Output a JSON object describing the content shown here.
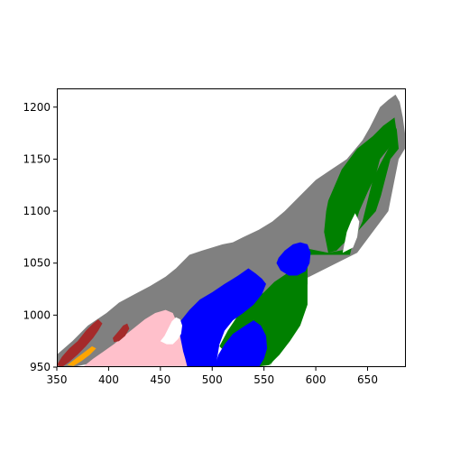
{
  "chart_data": {
    "type": "heatmap",
    "title": "",
    "xlabel": "",
    "ylabel": "",
    "xlim": [
      350,
      687
    ],
    "ylim": [
      950,
      1218
    ],
    "x_ticks": [
      350,
      400,
      450,
      500,
      550,
      600,
      650
    ],
    "y_ticks": [
      950,
      1000,
      1050,
      1100,
      1150,
      1200
    ],
    "grid": false,
    "legend": "none",
    "colors": {
      "gray": "#808080",
      "green": "#008000",
      "blue": "#0000ff",
      "pink": "#ffc0cb",
      "brown": "#a52a2a",
      "orange": "#ffa500",
      "background": "#ffffff"
    },
    "regions": [
      {
        "class": "gray",
        "polygon": [
          [
            350,
            962
          ],
          [
            365,
            975
          ],
          [
            380,
            990
          ],
          [
            398,
            1002
          ],
          [
            410,
            1012
          ],
          [
            425,
            1020
          ],
          [
            440,
            1028
          ],
          [
            455,
            1037
          ],
          [
            465,
            1045
          ],
          [
            470,
            1050
          ],
          [
            478,
            1058
          ],
          [
            490,
            1062
          ],
          [
            500,
            1065
          ],
          [
            510,
            1068
          ],
          [
            520,
            1070
          ],
          [
            530,
            1075
          ],
          [
            545,
            1082
          ],
          [
            558,
            1090
          ],
          [
            570,
            1100
          ],
          [
            585,
            1115
          ],
          [
            600,
            1130
          ],
          [
            615,
            1140
          ],
          [
            630,
            1150
          ],
          [
            645,
            1168
          ],
          [
            652,
            1180
          ],
          [
            656,
            1188
          ],
          [
            662,
            1200
          ],
          [
            670,
            1207
          ],
          [
            677,
            1212
          ],
          [
            681,
            1205
          ],
          [
            684,
            1190
          ],
          [
            686,
            1175
          ],
          [
            686,
            1160
          ],
          [
            680,
            1150
          ],
          [
            670,
            1100
          ],
          [
            640,
            1060
          ],
          [
            600,
            1040
          ],
          [
            560,
            1020
          ],
          [
            520,
            1000
          ],
          [
            480,
            985
          ],
          [
            450,
            972
          ],
          [
            420,
            962
          ],
          [
            390,
            955
          ],
          [
            365,
            950
          ],
          [
            350,
            950
          ]
        ]
      },
      {
        "class": "green",
        "polygon": [
          [
            555,
            950
          ],
          [
            560,
            960
          ],
          [
            570,
            990
          ],
          [
            575,
            1000
          ],
          [
            585,
            1020
          ],
          [
            588,
            1040
          ],
          [
            588,
            1058
          ],
          [
            600,
            1058
          ],
          [
            615,
            1058
          ],
          [
            633,
            1058
          ],
          [
            636,
            1070
          ],
          [
            645,
            1090
          ],
          [
            650,
            1110
          ],
          [
            655,
            1130
          ],
          [
            662,
            1145
          ],
          [
            670,
            1160
          ],
          [
            675,
            1172
          ],
          [
            678,
            1180
          ],
          [
            680,
            1160
          ],
          [
            672,
            1150
          ],
          [
            663,
            1115
          ],
          [
            658,
            1100
          ],
          [
            640,
            1080
          ],
          [
            634,
            1064
          ],
          [
            612,
            1060
          ],
          [
            592,
            1064
          ],
          [
            592,
            1030
          ],
          [
            585,
            1010
          ],
          [
            578,
            990
          ],
          [
            570,
            975
          ],
          [
            560,
            958
          ]
        ]
      },
      {
        "class": "green",
        "polygon": [
          [
            612,
            1110
          ],
          [
            625,
            1140
          ],
          [
            640,
            1160
          ],
          [
            655,
            1172
          ],
          [
            665,
            1182
          ],
          [
            676,
            1190
          ],
          [
            678,
            1176
          ],
          [
            670,
            1160
          ],
          [
            662,
            1150
          ],
          [
            658,
            1135
          ],
          [
            650,
            1118
          ],
          [
            642,
            1100
          ],
          [
            636,
            1080
          ],
          [
            628,
            1070
          ],
          [
            620,
            1062
          ],
          [
            612,
            1060
          ],
          [
            608,
            1080
          ],
          [
            610,
            1100
          ]
        ]
      },
      {
        "class": "green",
        "polygon": [
          [
            507,
            970
          ],
          [
            515,
            985
          ],
          [
            525,
            1000
          ],
          [
            538,
            1012
          ],
          [
            550,
            1022
          ],
          [
            560,
            1032
          ],
          [
            572,
            1040
          ],
          [
            585,
            1045
          ],
          [
            592,
            1040
          ],
          [
            592,
            1010
          ],
          [
            585,
            990
          ],
          [
            575,
            975
          ],
          [
            565,
            962
          ],
          [
            555,
            952
          ],
          [
            540,
            950
          ],
          [
            525,
            955
          ],
          [
            515,
            962
          ]
        ]
      },
      {
        "class": "blue",
        "polygon": [
          [
            458,
            950
          ],
          [
            460,
            960
          ],
          [
            462,
            972
          ],
          [
            465,
            985
          ],
          [
            470,
            995
          ],
          [
            478,
            1005
          ],
          [
            488,
            1015
          ],
          [
            500,
            1022
          ],
          [
            512,
            1030
          ],
          [
            525,
            1038
          ],
          [
            535,
            1045
          ],
          [
            542,
            1040
          ],
          [
            548,
            1035
          ],
          [
            552,
            1030
          ],
          [
            548,
            1020
          ],
          [
            540,
            1010
          ],
          [
            530,
            1002
          ],
          [
            520,
            995
          ],
          [
            512,
            985
          ],
          [
            507,
            972
          ],
          [
            505,
            960
          ],
          [
            503,
            950
          ]
        ]
      },
      {
        "class": "blue",
        "polygon": [
          [
            502,
            950
          ],
          [
            506,
            962
          ],
          [
            512,
            972
          ],
          [
            520,
            982
          ],
          [
            532,
            990
          ],
          [
            540,
            995
          ],
          [
            547,
            990
          ],
          [
            552,
            980
          ],
          [
            553,
            968
          ],
          [
            550,
            958
          ],
          [
            545,
            950
          ]
        ]
      },
      {
        "class": "blue",
        "polygon": [
          [
            564,
            1055
          ],
          [
            570,
            1062
          ],
          [
            578,
            1068
          ],
          [
            585,
            1070
          ],
          [
            592,
            1068
          ],
          [
            595,
            1060
          ],
          [
            594,
            1050
          ],
          [
            590,
            1042
          ],
          [
            582,
            1038
          ],
          [
            574,
            1038
          ],
          [
            566,
            1043
          ],
          [
            562,
            1050
          ]
        ]
      },
      {
        "class": "pink",
        "polygon": [
          [
            375,
            950
          ],
          [
            385,
            958
          ],
          [
            395,
            965
          ],
          [
            405,
            972
          ],
          [
            415,
            980
          ],
          [
            425,
            988
          ],
          [
            435,
            996
          ],
          [
            445,
            1002
          ],
          [
            455,
            1005
          ],
          [
            462,
            1002
          ],
          [
            465,
            995
          ],
          [
            468,
            985
          ],
          [
            470,
            975
          ],
          [
            472,
            965
          ],
          [
            474,
            958
          ],
          [
            476,
            950
          ]
        ]
      },
      {
        "class": "brown",
        "polygon": [
          [
            350,
            952
          ],
          [
            355,
            960
          ],
          [
            362,
            968
          ],
          [
            370,
            975
          ],
          [
            378,
            985
          ],
          [
            385,
            992
          ],
          [
            390,
            996
          ],
          [
            394,
            992
          ],
          [
            390,
            985
          ],
          [
            385,
            978
          ],
          [
            378,
            970
          ],
          [
            370,
            962
          ],
          [
            362,
            955
          ],
          [
            355,
            950
          ]
        ]
      },
      {
        "class": "brown",
        "polygon": [
          [
            404,
            978
          ],
          [
            410,
            985
          ],
          [
            414,
            990
          ],
          [
            418,
            992
          ],
          [
            420,
            987
          ],
          [
            416,
            980
          ],
          [
            410,
            975
          ],
          [
            405,
            974
          ]
        ]
      },
      {
        "class": "orange",
        "polygon": [
          [
            360,
            952
          ],
          [
            368,
            958
          ],
          [
            376,
            964
          ],
          [
            384,
            970
          ],
          [
            388,
            968
          ],
          [
            382,
            962
          ],
          [
            374,
            956
          ],
          [
            366,
            951
          ]
        ]
      },
      {
        "class": "white",
        "polygon": [
          [
            450,
            975
          ],
          [
            454,
            980
          ],
          [
            458,
            988
          ],
          [
            461,
            994
          ],
          [
            465,
            998
          ],
          [
            469,
            996
          ],
          [
            471,
            990
          ],
          [
            470,
            982
          ],
          [
            467,
            977
          ],
          [
            462,
            972
          ],
          [
            456,
            972
          ]
        ]
      },
      {
        "class": "white",
        "polygon": [
          [
            626,
            1060
          ],
          [
            630,
            1080
          ],
          [
            634,
            1090
          ],
          [
            638,
            1098
          ],
          [
            642,
            1090
          ],
          [
            640,
            1075
          ],
          [
            636,
            1065
          ]
        ]
      }
    ]
  }
}
